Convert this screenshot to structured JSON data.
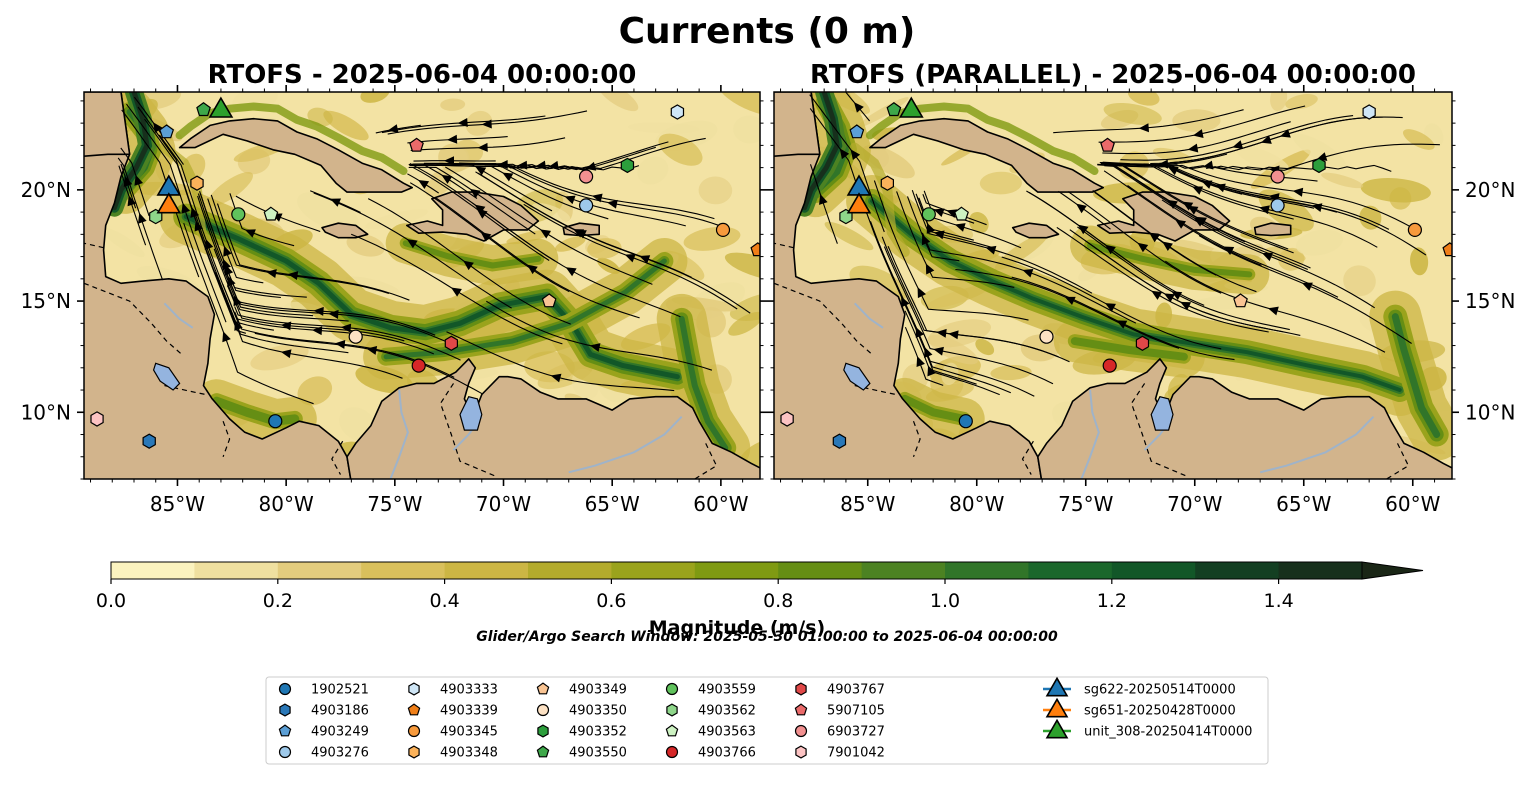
{
  "figure": {
    "suptitle": "Currents (0 m)",
    "search_window_note": "Glider/Argo Search Window: 2025-05-30 01:00:00 to 2025-06-04 00:00:00"
  },
  "chart_data": [
    {
      "type": "map",
      "title": "RTOFS - 2025-06-04 00:00:00",
      "xlim": [
        -89.3,
        -58.2
      ],
      "ylim": [
        7.0,
        24.4
      ],
      "x_ticks": [
        -85,
        -80,
        -75,
        -70,
        -65,
        -60
      ],
      "x_tick_labels": [
        "85°W",
        "80°W",
        "75°W",
        "70°W",
        "65°W",
        "60°W"
      ],
      "y_ticks": [
        10,
        15,
        20
      ],
      "y_tick_labels": [
        "10°N",
        "15°N",
        "20°N"
      ],
      "y_labels_side": "left"
    },
    {
      "type": "map",
      "title": "RTOFS (PARALLEL) - 2025-06-04 00:00:00",
      "xlim": [
        -89.3,
        -58.2
      ],
      "ylim": [
        7.0,
        24.4
      ],
      "x_ticks": [
        -85,
        -80,
        -75,
        -70,
        -65,
        -60
      ],
      "x_tick_labels": [
        "85°W",
        "80°W",
        "75°W",
        "70°W",
        "65°W",
        "60°W"
      ],
      "y_ticks": [
        10,
        15,
        20
      ],
      "y_tick_labels": [
        "10°N",
        "15°N",
        "20°N"
      ],
      "y_labels_side": "right"
    }
  ],
  "colorbar": {
    "label": "Magnitude (m/s)",
    "min": 0.0,
    "max": 1.5,
    "extend": "max",
    "ticks": [
      0.0,
      0.2,
      0.4,
      0.6,
      0.8,
      1.0,
      1.2,
      1.4
    ],
    "tick_labels": [
      "0.0",
      "0.2",
      "0.4",
      "0.6",
      "0.8",
      "1.0",
      "1.2",
      "1.4"
    ],
    "level_colors": [
      "#fbf3bf",
      "#efe0a0",
      "#e3cc7e",
      "#d9c05c",
      "#ccb644",
      "#b3ab2c",
      "#9aa31c",
      "#7f9a12",
      "#658e14",
      "#4c8222",
      "#317529",
      "#1b672b",
      "#125728",
      "#133f22",
      "#17301c"
    ],
    "extend_color": "#1a2616"
  },
  "legend": {
    "items": [
      {
        "label": "1902521",
        "marker": "circle",
        "color": "#1f77b4"
      },
      {
        "label": "4903186",
        "marker": "hexagon",
        "color": "#2a78b8"
      },
      {
        "label": "4903249",
        "marker": "pentagon",
        "color": "#5b9fd6"
      },
      {
        "label": "4903276",
        "marker": "circle",
        "color": "#9ec9ea"
      },
      {
        "label": "4903333",
        "marker": "hexagon",
        "color": "#cfe6f6"
      },
      {
        "label": "4903339",
        "marker": "pentagon",
        "color": "#f07f18"
      },
      {
        "label": "4903345",
        "marker": "circle",
        "color": "#f79a3c"
      },
      {
        "label": "4903348",
        "marker": "hexagon",
        "color": "#fbb25a"
      },
      {
        "label": "4903349",
        "marker": "pentagon",
        "color": "#f9c493"
      },
      {
        "label": "4903350",
        "marker": "circle",
        "color": "#fde2c4"
      },
      {
        "label": "4903352",
        "marker": "hexagon",
        "color": "#2c9e3c"
      },
      {
        "label": "4903550",
        "marker": "pentagon",
        "color": "#3ea84a"
      },
      {
        "label": "4903559",
        "marker": "circle",
        "color": "#60c25c"
      },
      {
        "label": "4903562",
        "marker": "hexagon",
        "color": "#8ed68a"
      },
      {
        "label": "4903563",
        "marker": "pentagon",
        "color": "#cdf2c2"
      },
      {
        "label": "4903766",
        "marker": "circle",
        "color": "#d62728"
      },
      {
        "label": "4903767",
        "marker": "hexagon",
        "color": "#e04848"
      },
      {
        "label": "5907105",
        "marker": "pentagon",
        "color": "#ea6a6a"
      },
      {
        "label": "6903727",
        "marker": "circle",
        "color": "#f29090"
      },
      {
        "label": "7901042",
        "marker": "hexagon",
        "color": "#fcc3c3"
      },
      {
        "label": "sg622-20250514T0000",
        "marker": "triangle",
        "color": "#1f77b4"
      },
      {
        "label": "sg651-20250428T0000",
        "marker": "triangle",
        "color": "#ff7f0e"
      },
      {
        "label": "unit_308-20250414T0000",
        "marker": "triangle",
        "color": "#2ca02c"
      }
    ]
  },
  "observations": [
    {
      "id": "1902521",
      "lon": -80.5,
      "lat": 9.6
    },
    {
      "id": "4903186",
      "lon": -86.3,
      "lat": 8.7
    },
    {
      "id": "4903249",
      "lon": -85.5,
      "lat": 22.6
    },
    {
      "id": "4903276",
      "lon": -66.2,
      "lat": 19.3
    },
    {
      "id": "4903333",
      "lon": -62.0,
      "lat": 23.5
    },
    {
      "id": "4903339",
      "lon": -58.3,
      "lat": 17.3
    },
    {
      "id": "4903345",
      "lon": -59.9,
      "lat": 18.2
    },
    {
      "id": "4903348",
      "lon": -84.1,
      "lat": 20.3
    },
    {
      "id": "4903349",
      "lon": -67.9,
      "lat": 15.0
    },
    {
      "id": "4903350",
      "lon": -76.8,
      "lat": 13.4
    },
    {
      "id": "4903352",
      "lon": -64.3,
      "lat": 21.1
    },
    {
      "id": "4903550",
      "lon": -83.8,
      "lat": 23.6
    },
    {
      "id": "4903559",
      "lon": -82.2,
      "lat": 18.9
    },
    {
      "id": "4903562",
      "lon": -86.0,
      "lat": 18.8
    },
    {
      "id": "4903563",
      "lon": -80.7,
      "lat": 18.9
    },
    {
      "id": "4903766",
      "lon": -73.9,
      "lat": 12.1
    },
    {
      "id": "4903767",
      "lon": -72.4,
      "lat": 13.1
    },
    {
      "id": "5907105",
      "lon": -74.0,
      "lat": 22.0
    },
    {
      "id": "6903727",
      "lon": -66.2,
      "lat": 20.6
    },
    {
      "id": "7901042",
      "lon": -88.7,
      "lat": 9.7
    }
  ],
  "gliders": [
    {
      "id": "sg622-20250514T0000",
      "lon": -85.4,
      "lat": 20.2
    },
    {
      "id": "sg651-20250428T0000",
      "lon": -85.4,
      "lat": 19.4
    },
    {
      "id": "unit_308-20250414T0000",
      "lon": -83.0,
      "lat": 23.7
    }
  ]
}
